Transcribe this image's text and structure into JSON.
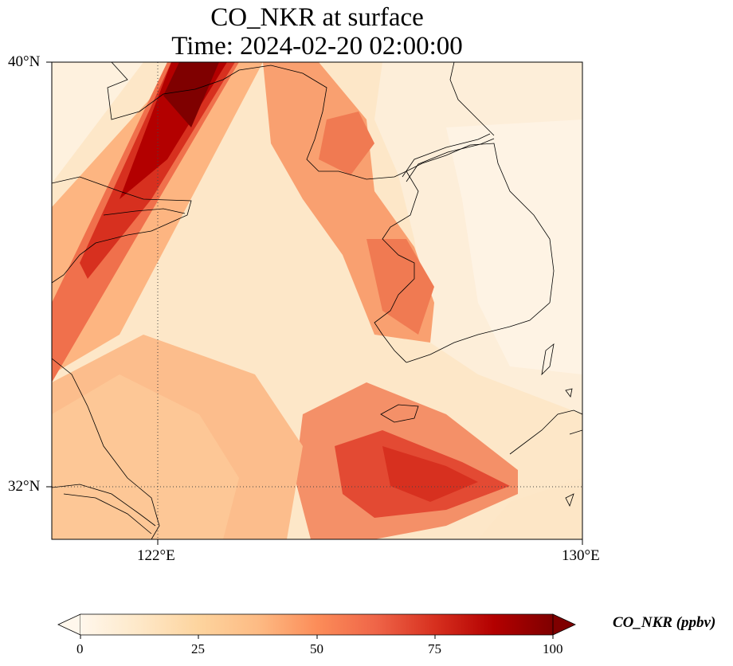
{
  "title": {
    "line1": "CO_NKR at surface",
    "line2": "Time: 2024-02-20 02:00:00"
  },
  "map": {
    "lat_range": [
      31.2,
      40.0
    ],
    "lon_range": [
      120.0,
      130.0
    ],
    "lat_ticks": [
      {
        "value": 40,
        "label": "40°N"
      },
      {
        "value": 32,
        "label": "32°N"
      }
    ],
    "lon_ticks": [
      {
        "value": 122,
        "label": "122°E"
      },
      {
        "value": 130,
        "label": "130°E"
      }
    ],
    "gridlines": "dotted at 122°E and 32°N",
    "field": "CO_NKR",
    "units": "ppbv"
  },
  "colorbar": {
    "label": "CO_NKR (ppbv)",
    "colormap": "OrRd",
    "range": [
      0,
      100
    ],
    "extend": "both",
    "ticks": [
      "0",
      "25",
      "50",
      "75",
      "100"
    ]
  },
  "colors": {
    "low": "#fff7ec",
    "mid": "#fdbb84",
    "high": "#7f0000",
    "coastline": "#000000"
  }
}
